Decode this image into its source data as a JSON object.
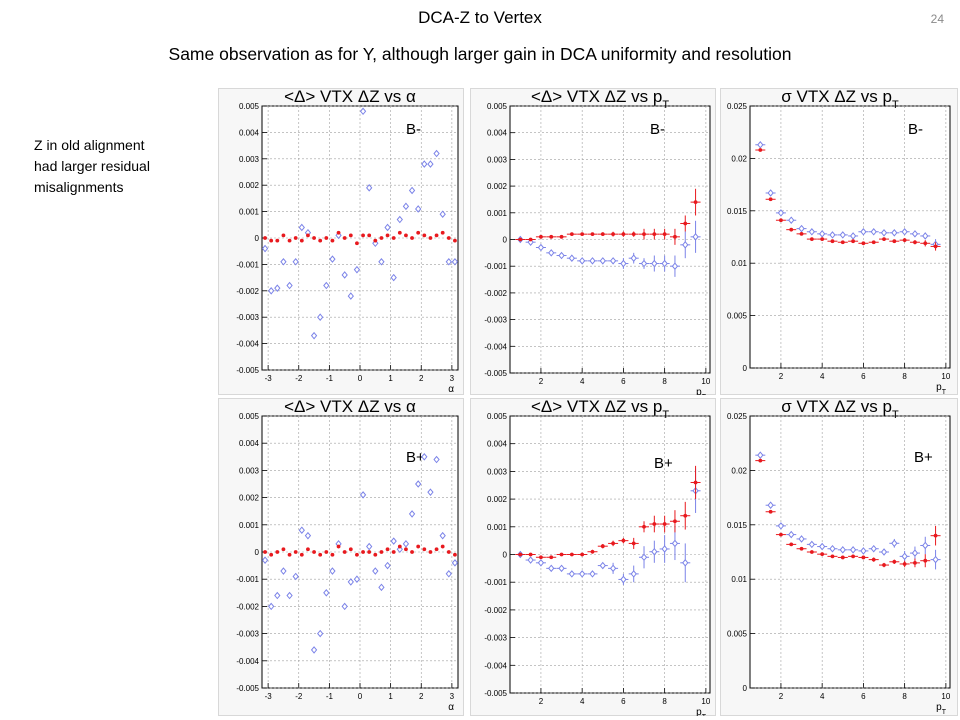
{
  "slide": {
    "title": "DCA-Z to Vertex",
    "subtitle": "Same observation as for Y, although larger gain in DCA uniformity and resolution",
    "page_number": "24",
    "note": "Z in old alignment\nhad larger residual\nmisalignments"
  },
  "colors": {
    "old": "#7b83e8",
    "new": "#e8191e"
  },
  "chart_data": [
    {
      "id": "p1",
      "type": "scatter",
      "title": "<Δ> VTX ΔZ vs α",
      "badge": "B-",
      "xlabel": "α",
      "ylabel": "",
      "xlim": [
        -3.2,
        3.2
      ],
      "ylim": [
        -0.005,
        0.005
      ],
      "xticks": [
        -3,
        -2,
        -1,
        0,
        1,
        2,
        3
      ],
      "yticks": [
        -0.005,
        -0.004,
        -0.003,
        -0.002,
        -0.001,
        0,
        0.001,
        0.002,
        0.003,
        0.004,
        0.005
      ],
      "ytick_labels": [
        "-0.005",
        "-0.004",
        "-0.003",
        "-0.002",
        "-0.001",
        "0",
        "0.001",
        "0.002",
        "0.003",
        "0.004",
        "0.005"
      ],
      "grid": true,
      "series": [
        {
          "color": "#7b83e8",
          "marker": "open-diamond",
          "x": [
            -3.1,
            -2.9,
            -2.7,
            -2.5,
            -2.3,
            -2.1,
            -1.9,
            -1.7,
            -1.5,
            -1.3,
            -1.1,
            -0.9,
            -0.7,
            -0.5,
            -0.3,
            -0.1,
            0.1,
            0.3,
            0.5,
            0.7,
            0.9,
            1.1,
            1.3,
            1.5,
            1.7,
            1.9,
            2.1,
            2.3,
            2.5,
            2.7,
            2.9,
            3.1
          ],
          "y": [
            -0.0004,
            -0.002,
            -0.0019,
            -0.0009,
            -0.0018,
            -0.0009,
            0.0004,
            0.0002,
            -0.0037,
            -0.003,
            -0.0018,
            -0.0008,
            0.0001,
            -0.0014,
            -0.0022,
            -0.0012,
            0.0048,
            0.0019,
            -0.0002,
            -0.0009,
            0.0004,
            -0.0015,
            0.0007,
            0.0012,
            0.0018,
            0.0011,
            0.0028,
            0.0028,
            0.0032,
            0.0009,
            -0.0009,
            -0.0009
          ]
        },
        {
          "color": "#e8191e",
          "marker": "filled-dot",
          "x": [
            -3.1,
            -2.9,
            -2.7,
            -2.5,
            -2.3,
            -2.1,
            -1.9,
            -1.7,
            -1.5,
            -1.3,
            -1.1,
            -0.9,
            -0.7,
            -0.5,
            -0.3,
            -0.1,
            0.1,
            0.3,
            0.5,
            0.7,
            0.9,
            1.1,
            1.3,
            1.5,
            1.7,
            1.9,
            2.1,
            2.3,
            2.5,
            2.7,
            2.9,
            3.1
          ],
          "y": [
            0.0,
            -0.0001,
            -0.0001,
            0.0001,
            -0.0001,
            0.0,
            -0.0001,
            0.0001,
            0.0,
            -0.0001,
            0.0,
            -0.0001,
            0.0002,
            0.0,
            0.0001,
            -0.0002,
            0.0001,
            0.0001,
            -0.0001,
            0.0,
            0.0001,
            0.0,
            0.0002,
            0.0001,
            0.0,
            0.0002,
            0.0001,
            0.0,
            0.0001,
            0.0002,
            0.0,
            -0.0001
          ]
        }
      ]
    },
    {
      "id": "p2",
      "type": "scatter",
      "title": "<Δ> VTX ΔZ vs p",
      "title_sub": "T",
      "badge": "B-",
      "xlabel": "p",
      "xlabel_sub": "T",
      "xlim": [
        0.5,
        10.2
      ],
      "ylim": [
        -0.005,
        0.005
      ],
      "xticks": [
        2,
        4,
        6,
        8,
        10
      ],
      "yticks": [
        -0.005,
        -0.004,
        -0.003,
        -0.002,
        -0.001,
        0,
        0.001,
        0.002,
        0.003,
        0.004,
        0.005
      ],
      "ytick_labels": [
        "-0.005",
        "-0.004",
        "-0.003",
        "-0.002",
        "-0.001",
        "0",
        "0.001",
        "0.002",
        "0.003",
        "0.004",
        "0.005"
      ],
      "grid": true,
      "series": [
        {
          "color": "#7b83e8",
          "marker": "open-diamond",
          "x": [
            1,
            1.5,
            2,
            2.5,
            3,
            3.5,
            4,
            4.5,
            5,
            5.5,
            6,
            6.5,
            7,
            7.5,
            8,
            8.5,
            9,
            9.5
          ],
          "y": [
            0.0,
            -0.0001,
            -0.0003,
            -0.0005,
            -0.0006,
            -0.0007,
            -0.0008,
            -0.0008,
            -0.0008,
            -0.0008,
            -0.0009,
            -0.0007,
            -0.0009,
            -0.0009,
            -0.0009,
            -0.001,
            -0.0002,
            0.0001
          ],
          "err": [
            5e-05,
            5e-05,
            5e-05,
            5e-05,
            5e-05,
            5e-05,
            6e-05,
            7e-05,
            8e-05,
            0.0001,
            0.0002,
            0.0002,
            0.0002,
            0.0003,
            0.0003,
            0.0004,
            0.0005,
            0.0006
          ]
        },
        {
          "color": "#e8191e",
          "marker": "filled-dot",
          "x": [
            1,
            1.5,
            2,
            2.5,
            3,
            3.5,
            4,
            4.5,
            5,
            5.5,
            6,
            6.5,
            7,
            7.5,
            8,
            8.5,
            9,
            9.5
          ],
          "y": [
            0.0,
            0.0,
            0.0001,
            0.0001,
            0.0001,
            0.0002,
            0.0002,
            0.0002,
            0.0002,
            0.0002,
            0.0002,
            0.0002,
            0.0002,
            0.0002,
            0.0002,
            0.0001,
            0.0006,
            0.0014
          ],
          "err": [
            5e-05,
            5e-05,
            5e-05,
            5e-05,
            5e-05,
            5e-05,
            5e-05,
            6e-05,
            7e-05,
            9e-05,
            0.0001,
            0.0001,
            0.0002,
            0.0002,
            0.0002,
            0.0003,
            0.0003,
            0.0005
          ]
        }
      ]
    },
    {
      "id": "p3",
      "type": "scatter",
      "title": "σ VTX ΔZ vs p",
      "title_sub": "T",
      "badge": "B-",
      "xlabel": "p",
      "xlabel_sub": "T",
      "xlim": [
        0.5,
        10.2
      ],
      "ylim": [
        0,
        0.025
      ],
      "xticks": [
        2,
        4,
        6,
        8,
        10
      ],
      "yticks": [
        0,
        0.005,
        0.01,
        0.015,
        0.02,
        0.025
      ],
      "ytick_labels": [
        "0",
        "0.005",
        "0.01",
        "0.015",
        "0.02",
        "0.025"
      ],
      "grid": true,
      "series": [
        {
          "color": "#7b83e8",
          "marker": "open-diamond",
          "x": [
            1,
            1.5,
            2,
            2.5,
            3,
            3.5,
            4,
            4.5,
            5,
            5.5,
            6,
            6.5,
            7,
            7.5,
            8,
            8.5,
            9,
            9.5
          ],
          "y": [
            0.0213,
            0.0167,
            0.0148,
            0.0141,
            0.0133,
            0.013,
            0.0128,
            0.0127,
            0.0127,
            0.0126,
            0.013,
            0.013,
            0.0129,
            0.0129,
            0.013,
            0.0128,
            0.0126,
            0.0118
          ],
          "err": [
            0.0001,
            0.0001,
            0.0001,
            0.0001,
            0.0001,
            0.0001,
            0.0001,
            0.0001,
            0.0001,
            0.0001,
            0.0001,
            0.0001,
            0.0002,
            0.0002,
            0.0002,
            0.0003,
            0.0003,
            0.0005
          ]
        },
        {
          "color": "#e8191e",
          "marker": "filled-dot",
          "x": [
            1,
            1.5,
            2,
            2.5,
            3,
            3.5,
            4,
            4.5,
            5,
            5.5,
            6,
            6.5,
            7,
            7.5,
            8,
            8.5,
            9,
            9.5
          ],
          "y": [
            0.0208,
            0.0161,
            0.0141,
            0.0132,
            0.0128,
            0.0123,
            0.0123,
            0.0121,
            0.012,
            0.0121,
            0.0119,
            0.012,
            0.0123,
            0.0121,
            0.0122,
            0.012,
            0.0119,
            0.0116
          ],
          "err": [
            0.0001,
            0.0001,
            0.0001,
            0.0001,
            0.0001,
            0.0001,
            0.0001,
            0.0001,
            0.0001,
            0.0001,
            0.0001,
            0.0001,
            0.0001,
            0.0001,
            0.0002,
            0.0002,
            0.0003,
            0.0004
          ]
        }
      ]
    },
    {
      "id": "p4",
      "type": "scatter",
      "title": "<Δ> VTX ΔZ vs α",
      "badge": "B+",
      "xlabel": "α",
      "xlim": [
        -3.2,
        3.2
      ],
      "ylim": [
        -0.005,
        0.005
      ],
      "xticks": [
        -3,
        -2,
        -1,
        0,
        1,
        2,
        3
      ],
      "yticks": [
        -0.005,
        -0.004,
        -0.003,
        -0.002,
        -0.001,
        0,
        0.001,
        0.002,
        0.003,
        0.004,
        0.005
      ],
      "ytick_labels": [
        "-0.005",
        "-0.004",
        "-0.003",
        "-0.002",
        "-0.001",
        "0",
        "0.001",
        "0.002",
        "0.003",
        "0.004",
        "0.005"
      ],
      "grid": true,
      "series": [
        {
          "color": "#7b83e8",
          "marker": "open-diamond",
          "x": [
            -3.1,
            -2.9,
            -2.7,
            -2.5,
            -2.3,
            -2.1,
            -1.9,
            -1.7,
            -1.5,
            -1.3,
            -1.1,
            -0.9,
            -0.7,
            -0.5,
            -0.3,
            -0.1,
            0.1,
            0.3,
            0.5,
            0.7,
            0.9,
            1.1,
            1.3,
            1.5,
            1.7,
            1.9,
            2.1,
            2.3,
            2.5,
            2.7,
            2.9,
            3.1
          ],
          "y": [
            -0.0003,
            -0.002,
            -0.0016,
            -0.0007,
            -0.0016,
            -0.0009,
            0.0008,
            0.0006,
            -0.0036,
            -0.003,
            -0.0015,
            -0.0007,
            0.0003,
            -0.002,
            -0.0011,
            -0.001,
            0.0021,
            0.0002,
            -0.0007,
            -0.0013,
            -0.0005,
            0.0004,
            0.0001,
            0.0003,
            0.0014,
            0.0025,
            0.0035,
            0.0022,
            0.0034,
            0.0006,
            -0.0008,
            -0.0004
          ]
        },
        {
          "color": "#e8191e",
          "marker": "filled-dot",
          "x": [
            -3.1,
            -2.9,
            -2.7,
            -2.5,
            -2.3,
            -2.1,
            -1.9,
            -1.7,
            -1.5,
            -1.3,
            -1.1,
            -0.9,
            -0.7,
            -0.5,
            -0.3,
            -0.1,
            0.1,
            0.3,
            0.5,
            0.7,
            0.9,
            1.1,
            1.3,
            1.5,
            1.7,
            1.9,
            2.1,
            2.3,
            2.5,
            2.7,
            2.9,
            3.1
          ],
          "y": [
            0.0,
            -0.0001,
            0.0,
            0.0001,
            -0.0001,
            0.0,
            -0.0001,
            0.0001,
            0.0,
            -0.0001,
            0.0,
            -0.0001,
            0.0002,
            0.0,
            0.0001,
            -0.0001,
            0.0,
            0.0,
            -0.0001,
            0.0,
            0.0001,
            0.0,
            0.0002,
            0.0001,
            0.0,
            0.0002,
            0.0001,
            0.0,
            0.0001,
            0.0002,
            0.0,
            -0.0001
          ]
        }
      ]
    },
    {
      "id": "p5",
      "type": "scatter",
      "title": "<Δ> VTX ΔZ vs p",
      "title_sub": "T",
      "badge": "B+",
      "xlabel": "p",
      "xlabel_sub": "T",
      "xlim": [
        0.5,
        10.2
      ],
      "ylim": [
        -0.005,
        0.005
      ],
      "xticks": [
        2,
        4,
        6,
        8,
        10
      ],
      "yticks": [
        -0.005,
        -0.004,
        -0.003,
        -0.002,
        -0.001,
        0,
        0.001,
        0.002,
        0.003,
        0.004,
        0.005
      ],
      "ytick_labels": [
        "-0.005",
        "-0.004",
        "-0.003",
        "-0.002",
        "-0.001",
        "0",
        "0.001",
        "0.002",
        "0.003",
        "0.004",
        "0.005"
      ],
      "grid": true,
      "series": [
        {
          "color": "#7b83e8",
          "marker": "open-diamond",
          "x": [
            1,
            1.5,
            2,
            2.5,
            3,
            3.5,
            4,
            4.5,
            5,
            5.5,
            6,
            6.5,
            7,
            7.5,
            8,
            8.5,
            9,
            9.5
          ],
          "y": [
            0.0,
            -0.0002,
            -0.0003,
            -0.0005,
            -0.0005,
            -0.0007,
            -0.0007,
            -0.0007,
            -0.0004,
            -0.0005,
            -0.0009,
            -0.0007,
            -0.0001,
            0.0001,
            0.0002,
            0.0004,
            -0.0003,
            0.0023
          ],
          "err": [
            5e-05,
            5e-05,
            5e-05,
            5e-05,
            5e-05,
            6e-05,
            6e-05,
            8e-05,
            0.0001,
            0.0002,
            0.0002,
            0.0003,
            0.0004,
            0.0004,
            0.0005,
            0.0006,
            0.0007,
            0.0008
          ]
        },
        {
          "color": "#e8191e",
          "marker": "filled-dot",
          "x": [
            1,
            1.5,
            2,
            2.5,
            3,
            3.5,
            4,
            4.5,
            5,
            5.5,
            6,
            6.5,
            7,
            7.5,
            8,
            8.5,
            9,
            9.5
          ],
          "y": [
            0.0,
            0.0,
            -0.0001,
            -0.0001,
            0.0,
            0.0,
            0.0,
            0.0001,
            0.0003,
            0.0004,
            0.0005,
            0.0004,
            0.001,
            0.0011,
            0.0011,
            0.0012,
            0.0014,
            0.0026
          ],
          "err": [
            5e-05,
            5e-05,
            5e-05,
            5e-05,
            5e-05,
            5e-05,
            6e-05,
            7e-05,
            8e-05,
            0.0001,
            0.0001,
            0.0002,
            0.0002,
            0.0003,
            0.0003,
            0.0004,
            0.0005,
            0.0006
          ]
        }
      ]
    },
    {
      "id": "p6",
      "type": "scatter",
      "title": "σ VTX ΔZ vs p",
      "title_sub": "T",
      "badge": "B+",
      "xlabel": "p",
      "xlabel_sub": "T",
      "xlim": [
        0.5,
        10.2
      ],
      "ylim": [
        0,
        0.025
      ],
      "xticks": [
        2,
        4,
        6,
        8,
        10
      ],
      "yticks": [
        0,
        0.005,
        0.01,
        0.015,
        0.02,
        0.025
      ],
      "ytick_labels": [
        "0",
        "0.005",
        "0.01",
        "0.015",
        "0.02",
        "0.025"
      ],
      "grid": true,
      "series": [
        {
          "color": "#7b83e8",
          "marker": "open-diamond",
          "x": [
            1,
            1.5,
            2,
            2.5,
            3,
            3.5,
            4,
            4.5,
            5,
            5.5,
            6,
            6.5,
            7,
            7.5,
            8,
            8.5,
            9,
            9.5
          ],
          "y": [
            0.0214,
            0.0168,
            0.0149,
            0.0141,
            0.0137,
            0.0132,
            0.013,
            0.0128,
            0.0127,
            0.0127,
            0.0126,
            0.0128,
            0.0125,
            0.0133,
            0.0121,
            0.0124,
            0.0131,
            0.0118
          ],
          "err": [
            0.0001,
            0.0001,
            0.0001,
            0.0001,
            0.0001,
            0.0001,
            0.0001,
            0.0001,
            0.0001,
            0.0002,
            0.0002,
            0.0002,
            0.0003,
            0.0004,
            0.0005,
            0.0006,
            0.0008,
            0.0009
          ]
        },
        {
          "color": "#e8191e",
          "marker": "filled-dot",
          "x": [
            1,
            1.5,
            2,
            2.5,
            3,
            3.5,
            4,
            4.5,
            5,
            5.5,
            6,
            6.5,
            7,
            7.5,
            8,
            8.5,
            9,
            9.5
          ],
          "y": [
            0.0209,
            0.0162,
            0.0141,
            0.0132,
            0.0128,
            0.0125,
            0.0123,
            0.0121,
            0.012,
            0.0121,
            0.012,
            0.0118,
            0.0113,
            0.0116,
            0.0114,
            0.0115,
            0.0117,
            0.014
          ],
          "err": [
            0.0001,
            0.0001,
            0.0001,
            0.0001,
            0.0001,
            0.0001,
            0.0001,
            0.0001,
            0.0001,
            0.0001,
            0.0001,
            0.0002,
            0.0002,
            0.0002,
            0.0003,
            0.0004,
            0.0006,
            0.0009
          ]
        }
      ]
    }
  ]
}
